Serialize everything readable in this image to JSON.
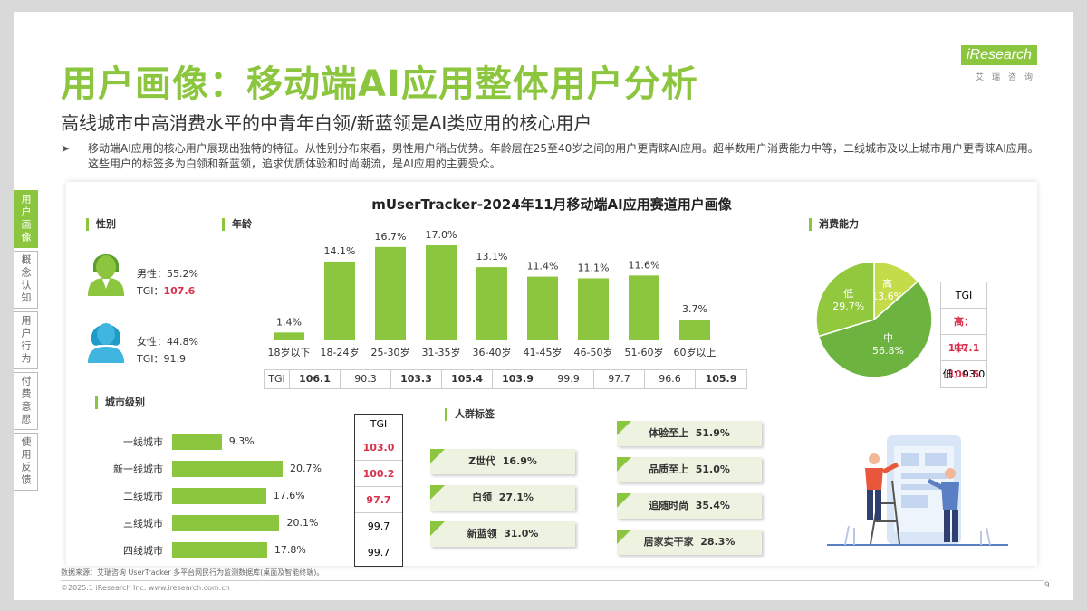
{
  "header": {
    "title": "用户画像：移动端AI应用整体用户分析",
    "subtitle": "高线城市中高消费水平的中青年白领/新蓝领是AI类应用的核心用户",
    "bullet_arrow": "➤",
    "bullet": "移动端AI应用的核心用户展现出独特的特征。从性别分布来看，男性用户稍占优势。年龄层在25至40岁之间的用户更青睐AI应用。超半数用户消费能力中等，二线城市及以上城市用户更青睐AI应用。这些用户的标签多为白领和新蓝领，追求优质体验和时尚潮流，是AI应用的主要受众。"
  },
  "logo": {
    "brand": "iResearch",
    "cn": "艾瑞咨询"
  },
  "sidenav": [
    {
      "label": "用户画像"
    },
    {
      "label": "概念认知"
    },
    {
      "label": "用户行为"
    },
    {
      "label": "付费意愿"
    },
    {
      "label": "使用反馈"
    }
  ],
  "footer": {
    "source": "数据来源：艾瑞咨询 UserTracker 多平台网民行为监测数据库(桌面及智能终端)。",
    "copyright": "©2025.1 iResearch Inc.                www.iresearch.com.cn",
    "page": "9"
  },
  "colors": {
    "accent": "#8cc63f",
    "mid_green": "#6db33f",
    "dark_green": "#4fa23a",
    "red": "#d9304c"
  },
  "chart_data": [
    {
      "type": "bar",
      "title": "mUserTracker-2024年11月移动端AI应用赛道用户画像",
      "section": "年龄",
      "categories": [
        "18岁以下",
        "18-24岁",
        "25-30岁",
        "31-35岁",
        "36-40岁",
        "41-45岁",
        "46-50岁",
        "51-60岁",
        "60岁以上"
      ],
      "labels": [
        "1.4%",
        "14.1%",
        "16.7%",
        "17.0%",
        "13.1%",
        "11.4%",
        "11.1%",
        "11.6%",
        "3.7%"
      ],
      "values": [
        1.4,
        14.1,
        16.7,
        17.0,
        13.1,
        11.4,
        11.1,
        11.6,
        3.7
      ],
      "tgi_label": "TGI",
      "tgi": [
        "106.1",
        "90.3",
        "103.3",
        "105.4",
        "103.9",
        "99.9",
        "97.7",
        "96.6",
        "105.9"
      ],
      "tgi_highlight": [
        true,
        false,
        true,
        true,
        true,
        false,
        false,
        false,
        true
      ]
    },
    {
      "type": "bar",
      "orientation": "horizontal",
      "section": "城市级别",
      "categories": [
        "一线城市",
        "新一线城市",
        "二线城市",
        "三线城市",
        "四线城市"
      ],
      "labels": [
        "9.3%",
        "20.7%",
        "17.6%",
        "20.1%",
        "17.8%"
      ],
      "values": [
        9.3,
        20.7,
        17.6,
        20.1,
        17.8
      ],
      "tgi_label": "TGI",
      "tgi": [
        "103.0",
        "100.2",
        "97.7",
        "99.7",
        "99.7"
      ],
      "tgi_highlight": [
        true,
        true,
        true,
        false,
        false
      ]
    },
    {
      "type": "pie",
      "section": "消费能力",
      "slices": [
        {
          "name": "高",
          "value": 13.6,
          "label": "13.6%",
          "color": "#c5dc4a"
        },
        {
          "name": "中",
          "value": 56.8,
          "label": "56.8%",
          "color": "#6db33f"
        },
        {
          "name": "低",
          "value": 29.7,
          "label": "29.7%",
          "color": "#92c83e"
        }
      ],
      "tgi_label": "TGI",
      "tgi": [
        {
          "text": "高：117.1",
          "highlight": true
        },
        {
          "text": "中：100.5",
          "highlight": true
        },
        {
          "text": "低：93.0",
          "highlight": false
        }
      ]
    }
  ],
  "gender": {
    "section": "性别",
    "male": {
      "label": "男性：",
      "pct": "55.2%",
      "tgi_label": "TGI：",
      "tgi": "107.6"
    },
    "female": {
      "label": "女性：",
      "pct": "44.8%",
      "tgi_label": "TGI：",
      "tgi": "91.9"
    }
  },
  "tags": {
    "section": "人群标签",
    "left": [
      {
        "name": "Z世代",
        "value": "16.9%"
      },
      {
        "name": "白领",
        "value": "27.1%"
      },
      {
        "name": "新蓝领",
        "value": "31.0%"
      }
    ],
    "right": [
      {
        "name": "体验至上",
        "value": "51.9%"
      },
      {
        "name": "品质至上",
        "value": "51.0%"
      },
      {
        "name": "追随时尚",
        "value": "35.4%"
      },
      {
        "name": "居家实干家",
        "value": "28.3%"
      }
    ]
  }
}
